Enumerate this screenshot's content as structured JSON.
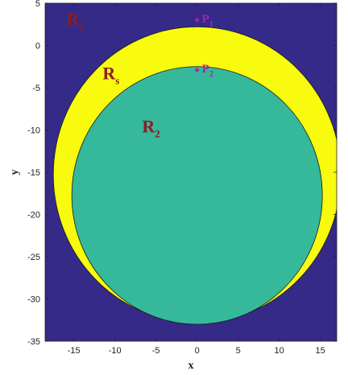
{
  "chart_data": {
    "type": "region-plot",
    "xlabel": "x",
    "ylabel": "y",
    "xlim": [
      -18.5,
      17
    ],
    "ylim": [
      -35,
      5
    ],
    "x_ticks": [
      -15,
      -10,
      -5,
      0,
      5,
      10,
      15
    ],
    "y_ticks": [
      5,
      0,
      -5,
      -10,
      -15,
      -20,
      -25,
      -30,
      -35
    ],
    "colors": {
      "background": "#352a87",
      "outer_region": "#f9fb0e",
      "inner_region": "#35b99a"
    },
    "circles": [
      {
        "name": "outer",
        "cx": 0,
        "cy": -15.3,
        "r": 17.5
      },
      {
        "name": "inner",
        "cx": 0,
        "cy": -17.75,
        "r": 15.25
      }
    ],
    "region_labels": [
      {
        "main": "R",
        "sub": "1",
        "x": -15.9,
        "y": 2.4
      },
      {
        "main": "R",
        "sub": "s",
        "x": -11.5,
        "y": -4.0
      },
      {
        "main": "R",
        "sub": "2",
        "x": -6.7,
        "y": -10.3
      }
    ],
    "points": [
      {
        "main": "P",
        "sub": "1",
        "x": 0,
        "y": 3.0
      },
      {
        "main": "P",
        "sub": "2",
        "x": 0,
        "y": -2.9
      }
    ]
  }
}
